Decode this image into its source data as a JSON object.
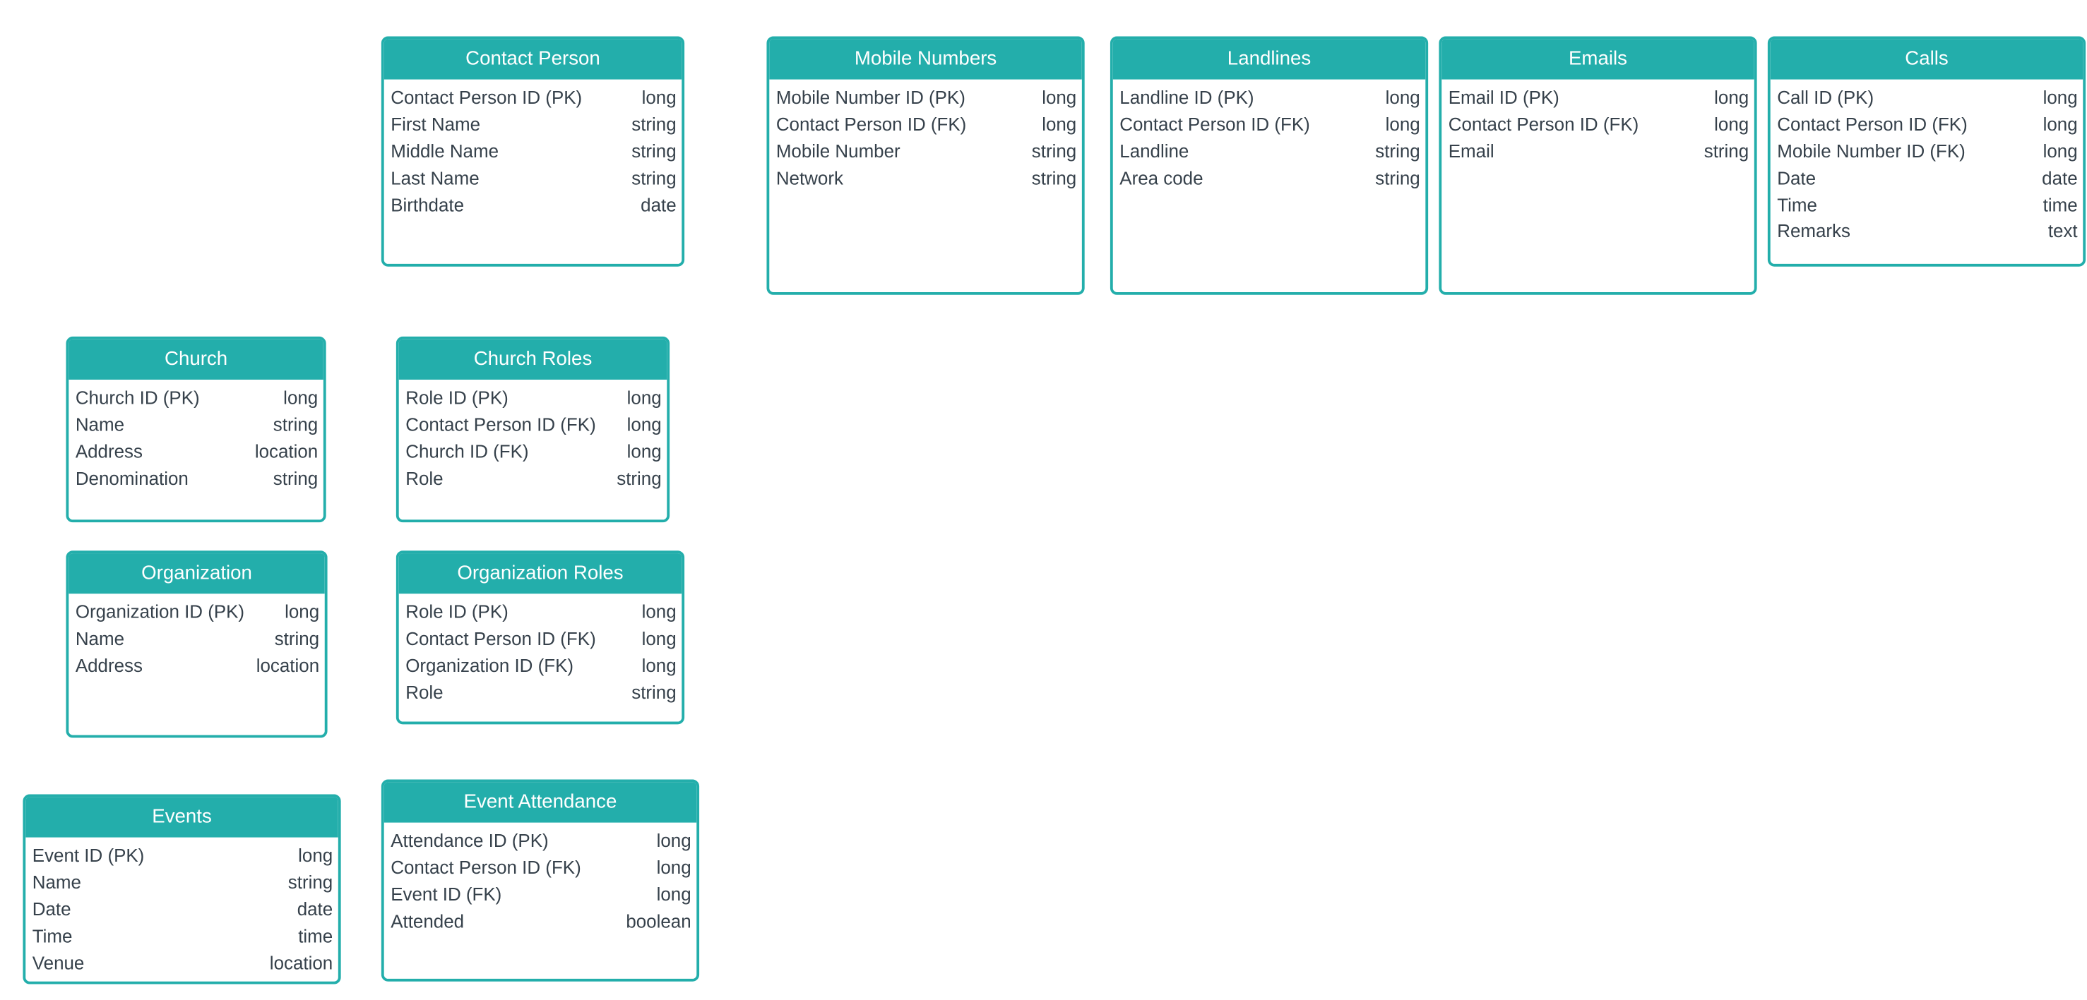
{
  "diagram": {
    "entities": [
      {
        "id": "contact-person",
        "title": "Contact Person",
        "attributes": [
          {
            "name": "Contact Person ID (PK)",
            "type": "long"
          },
          {
            "name": "First Name",
            "type": "string"
          },
          {
            "name": "Middle Name",
            "type": "string"
          },
          {
            "name": "Last Name",
            "type": "string"
          },
          {
            "name": "Birthdate",
            "type": "date"
          }
        ]
      },
      {
        "id": "mobile-numbers",
        "title": "Mobile Numbers",
        "attributes": [
          {
            "name": "Mobile Number ID (PK)",
            "type": "long"
          },
          {
            "name": "Contact Person ID (FK)",
            "type": "long"
          },
          {
            "name": "Mobile Number",
            "type": "string"
          },
          {
            "name": "Network",
            "type": "string"
          }
        ]
      },
      {
        "id": "landlines",
        "title": "Landlines",
        "attributes": [
          {
            "name": "Landline ID (PK)",
            "type": "long"
          },
          {
            "name": "Contact Person ID (FK)",
            "type": "long"
          },
          {
            "name": "Landline",
            "type": "string"
          },
          {
            "name": "Area code",
            "type": "string"
          }
        ]
      },
      {
        "id": "emails",
        "title": "Emails",
        "attributes": [
          {
            "name": "Email ID (PK)",
            "type": "long"
          },
          {
            "name": "Contact Person ID (FK)",
            "type": "long"
          },
          {
            "name": "Email",
            "type": "string"
          }
        ]
      },
      {
        "id": "calls",
        "title": "Calls",
        "attributes": [
          {
            "name": "Call ID (PK)",
            "type": "long"
          },
          {
            "name": "Contact Person ID (FK)",
            "type": "long"
          },
          {
            "name": "Mobile Number ID (FK)",
            "type": "long"
          },
          {
            "name": "Date",
            "type": "date"
          },
          {
            "name": "Time",
            "type": "time"
          },
          {
            "name": "Remarks",
            "type": "text"
          }
        ]
      },
      {
        "id": "church",
        "title": "Church",
        "attributes": [
          {
            "name": "Church ID (PK)",
            "type": "long"
          },
          {
            "name": "Name",
            "type": "string"
          },
          {
            "name": "Address",
            "type": "location"
          },
          {
            "name": "Denomination",
            "type": "string"
          }
        ]
      },
      {
        "id": "church-roles",
        "title": "Church Roles",
        "attributes": [
          {
            "name": "Role ID (PK)",
            "type": "long"
          },
          {
            "name": "Contact Person ID (FK)",
            "type": "long"
          },
          {
            "name": "Church ID (FK)",
            "type": "long"
          },
          {
            "name": "Role",
            "type": "string"
          }
        ]
      },
      {
        "id": "organization",
        "title": "Organization",
        "attributes": [
          {
            "name": "Organization ID (PK)",
            "type": "long"
          },
          {
            "name": "Name",
            "type": "string"
          },
          {
            "name": "Address",
            "type": "location"
          }
        ]
      },
      {
        "id": "organization-roles",
        "title": "Organization Roles",
        "attributes": [
          {
            "name": "Role ID (PK)",
            "type": "long"
          },
          {
            "name": "Contact Person ID (FK)",
            "type": "long"
          },
          {
            "name": "Organization ID (FK)",
            "type": "long"
          },
          {
            "name": "Role",
            "type": "string"
          }
        ]
      },
      {
        "id": "events",
        "title": "Events",
        "attributes": [
          {
            "name": "Event ID (PK)",
            "type": "long"
          },
          {
            "name": "Name",
            "type": "string"
          },
          {
            "name": "Date",
            "type": "date"
          },
          {
            "name": "Time",
            "type": "time"
          },
          {
            "name": "Venue",
            "type": "location"
          }
        ]
      },
      {
        "id": "event-attendance",
        "title": "Event Attendance",
        "attributes": [
          {
            "name": "Attendance ID (PK)",
            "type": "long"
          },
          {
            "name": "Contact Person ID (FK)",
            "type": "long"
          },
          {
            "name": "Event ID (FK)",
            "type": "long"
          },
          {
            "name": "Attended",
            "type": "boolean"
          }
        ]
      }
    ]
  },
  "colors": {
    "accent": "#23aeab",
    "text": "#36414b",
    "header_text": "#ffffff"
  }
}
